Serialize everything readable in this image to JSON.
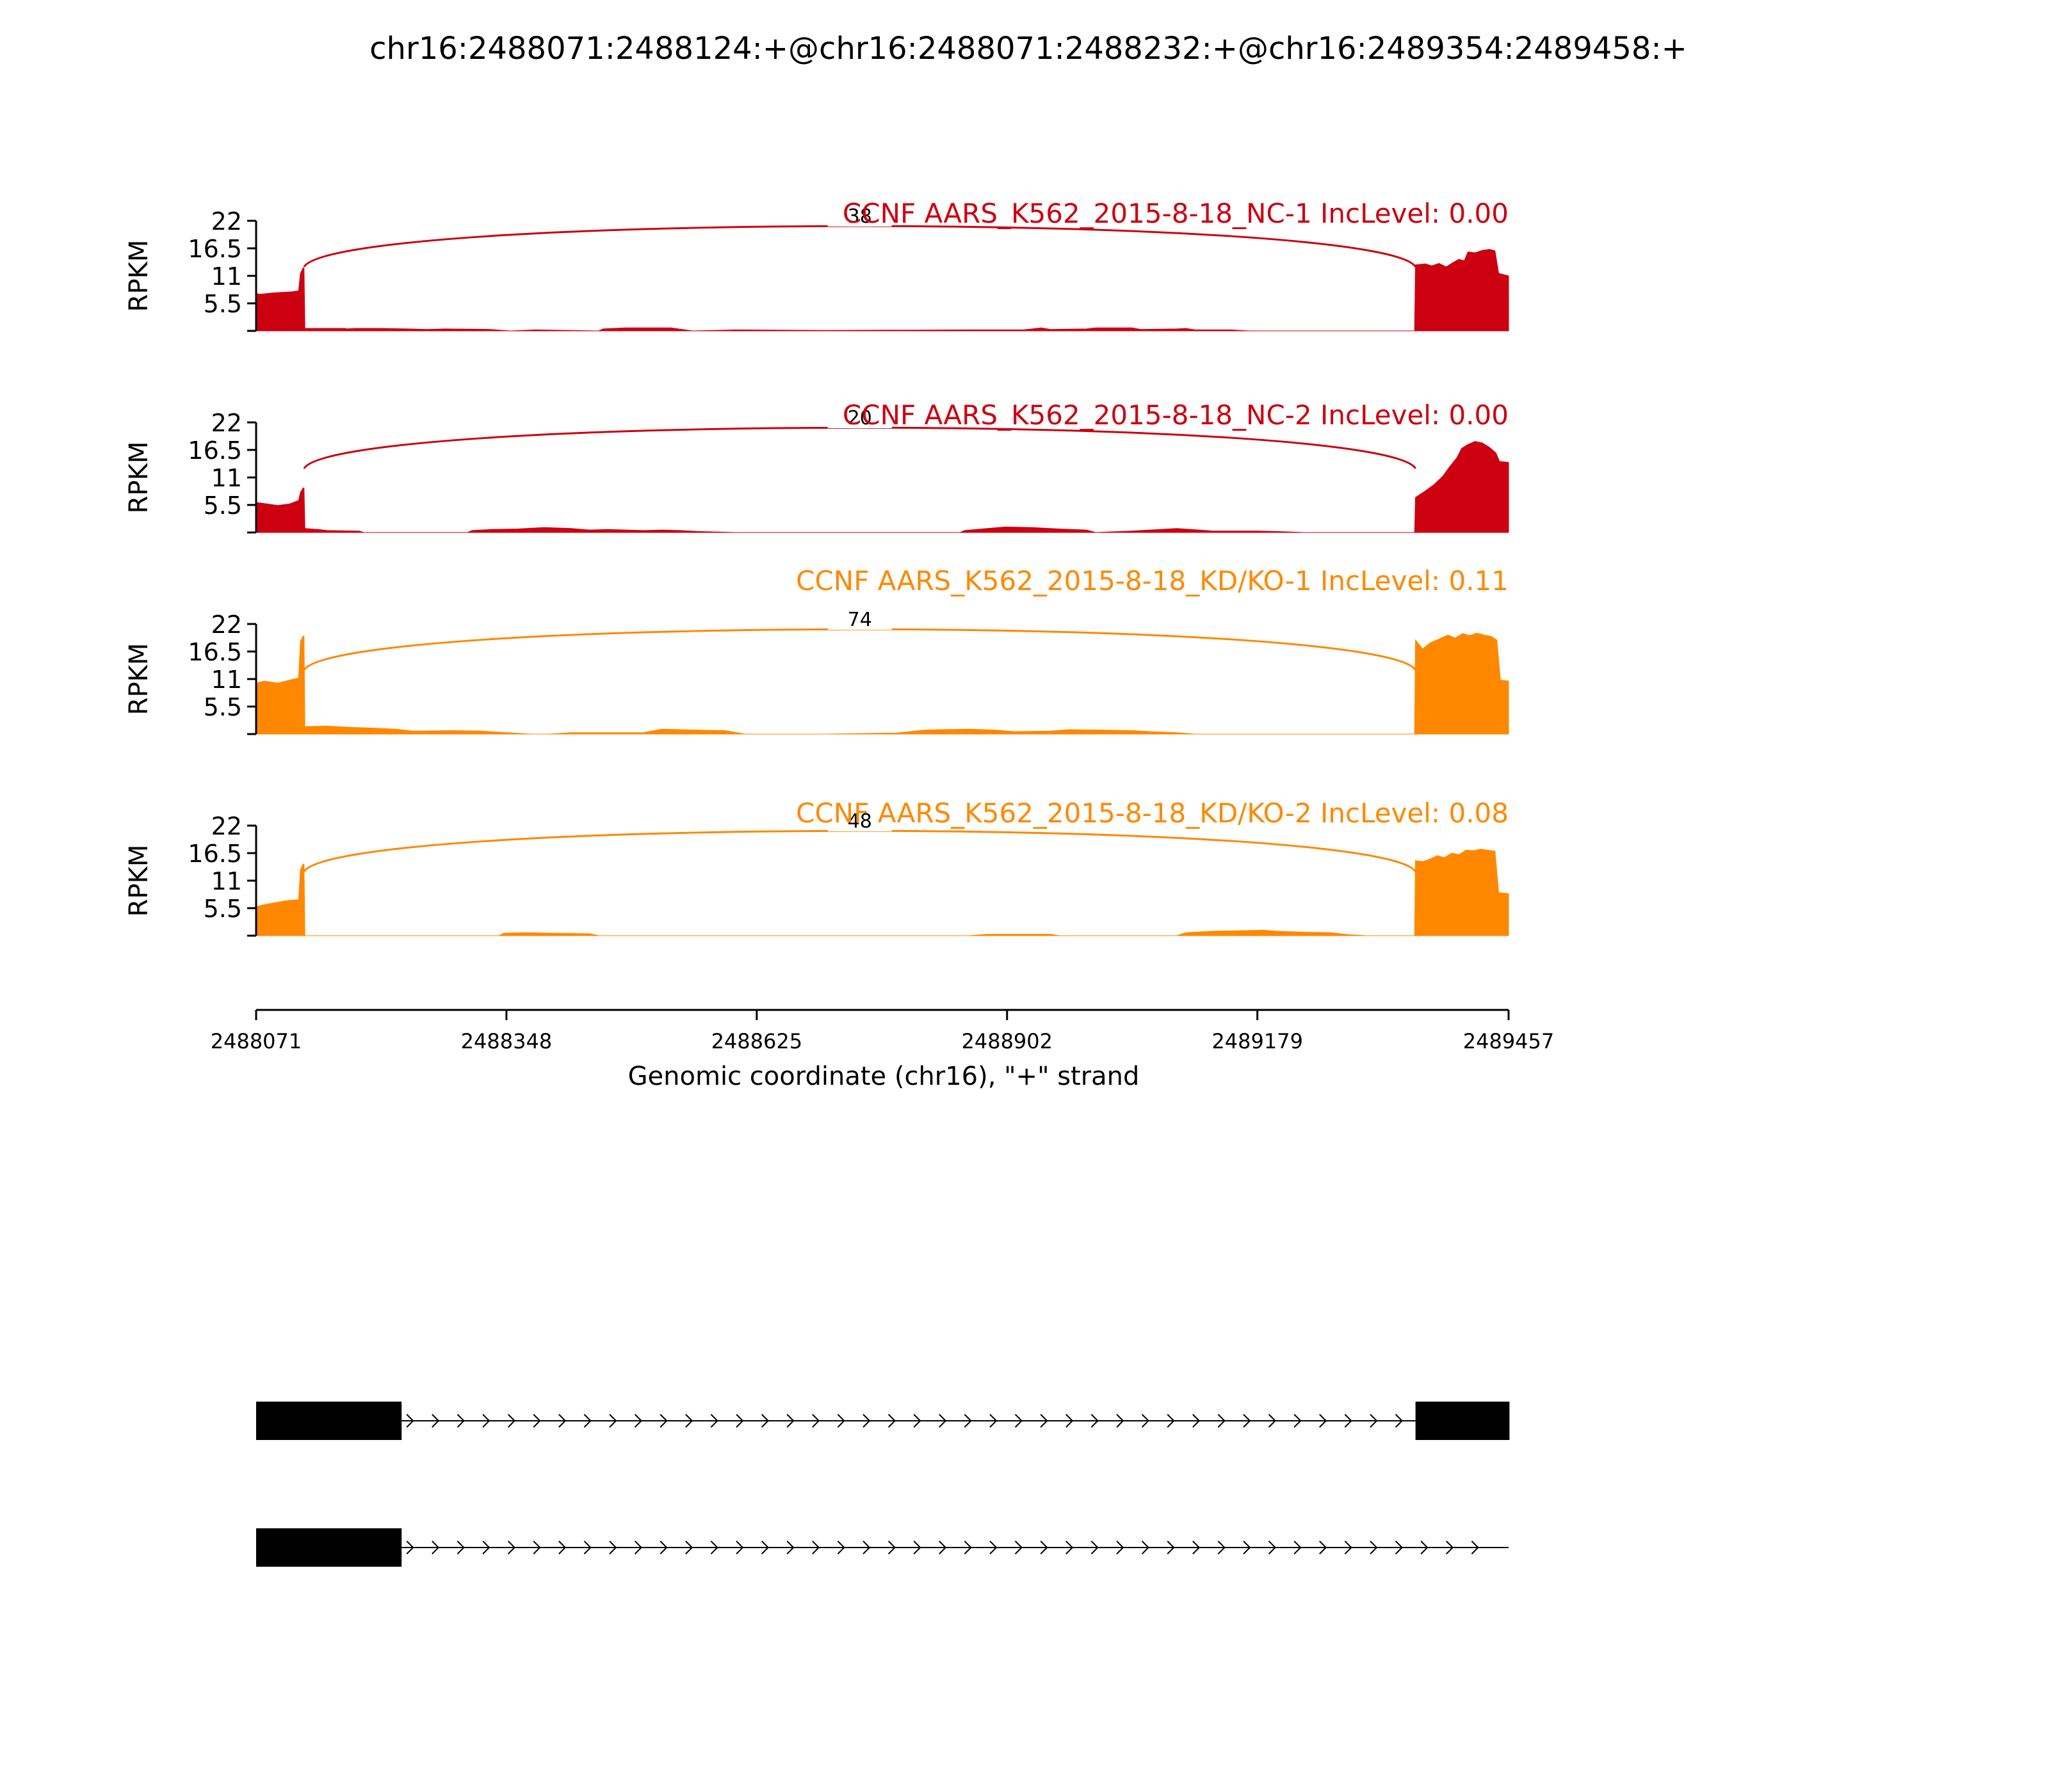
{
  "chart_data": {
    "type": "area",
    "title": "chr16:2488071:2488124:+@chr16:2488071:2488232:+@chr16:2489354:2489458:+",
    "xlabel": "Genomic coordinate (chr16), \"+\" strand",
    "x_ticks": [
      "2488071",
      "2488348",
      "2488625",
      "2488902",
      "2489179",
      "2489457"
    ],
    "xlim": [
      2488071,
      2489457
    ],
    "ylabel": "RPKM",
    "y_ticks": [
      "5.5",
      "11",
      "16.5",
      "22"
    ],
    "ylim": [
      0,
      22
    ],
    "grid": false,
    "legend": "none",
    "tracks": [
      {
        "name": "CCNF AARS_K562_2015-8-18_NC-1 IncLevel: 0.00",
        "color": "#cc0010",
        "junction": {
          "from": 2488124,
          "to": 2489354,
          "count": "38"
        },
        "coverage": [
          [
            2488071,
            7.5
          ],
          [
            2488075,
            7.3
          ],
          [
            2488090,
            7.6
          ],
          [
            2488110,
            7.8
          ],
          [
            2488118,
            8.0
          ],
          [
            2488120,
            11.5
          ],
          [
            2488123,
            12.6
          ],
          [
            2488124,
            12.6
          ],
          [
            2488125,
            0.5
          ],
          [
            2488170,
            0.5
          ],
          [
            2488171,
            0.4
          ],
          [
            2488180,
            0.5
          ],
          [
            2488210,
            0.5
          ],
          [
            2488240,
            0.4
          ],
          [
            2488260,
            0.3
          ],
          [
            2488280,
            0.4
          ],
          [
            2488330,
            0.3
          ],
          [
            2488352,
            0.0
          ],
          [
            2488380,
            0.2
          ],
          [
            2488450,
            0.0
          ],
          [
            2488455,
            0.4
          ],
          [
            2488480,
            0.6
          ],
          [
            2488530,
            0.6
          ],
          [
            2488554,
            0.0
          ],
          [
            2488600,
            0.2
          ],
          [
            2488700,
            0.1
          ],
          [
            2488860,
            0.2
          ],
          [
            2488920,
            0.2
          ],
          [
            2488930,
            0.4
          ],
          [
            2488940,
            0.6
          ],
          [
            2488950,
            0.3
          ],
          [
            2488990,
            0.4
          ],
          [
            2489000,
            0.6
          ],
          [
            2489040,
            0.6
          ],
          [
            2489050,
            0.3
          ],
          [
            2489090,
            0.4
          ],
          [
            2489100,
            0.5
          ],
          [
            2489110,
            0.2
          ],
          [
            2489150,
            0.2
          ],
          [
            2489170,
            0.0
          ],
          [
            2489353,
            0.0
          ],
          [
            2489354,
            13.2
          ],
          [
            2489365,
            13.4
          ],
          [
            2489372,
            13.0
          ],
          [
            2489380,
            13.5
          ],
          [
            2489388,
            12.8
          ],
          [
            2489395,
            13.6
          ],
          [
            2489402,
            14.3
          ],
          [
            2489408,
            14.0
          ],
          [
            2489412,
            15.8
          ],
          [
            2489420,
            15.6
          ],
          [
            2489428,
            16.1
          ],
          [
            2489436,
            16.3
          ],
          [
            2489442,
            16.0
          ],
          [
            2489446,
            11.5
          ],
          [
            2489457,
            11.0
          ]
        ]
      },
      {
        "name": "CCNF AARS_K562_2015-8-18_NC-2 IncLevel: 0.00",
        "color": "#cc0010",
        "junction": {
          "from": 2488124,
          "to": 2489354,
          "count": "20"
        },
        "coverage": [
          [
            2488071,
            6.0
          ],
          [
            2488080,
            5.8
          ],
          [
            2488095,
            5.4
          ],
          [
            2488108,
            5.7
          ],
          [
            2488118,
            6.4
          ],
          [
            2488120,
            8.0
          ],
          [
            2488123,
            8.9
          ],
          [
            2488124,
            8.9
          ],
          [
            2488125,
            0.8
          ],
          [
            2488140,
            0.6
          ],
          [
            2488150,
            0.4
          ],
          [
            2488185,
            0.3
          ],
          [
            2488190,
            0.0
          ],
          [
            2488305,
            0.0
          ],
          [
            2488310,
            0.4
          ],
          [
            2488330,
            0.6
          ],
          [
            2488360,
            0.7
          ],
          [
            2488390,
            1.0
          ],
          [
            2488420,
            0.8
          ],
          [
            2488440,
            0.5
          ],
          [
            2488460,
            0.6
          ],
          [
            2488480,
            0.5
          ],
          [
            2488500,
            0.4
          ],
          [
            2488520,
            0.5
          ],
          [
            2488540,
            0.4
          ],
          [
            2488560,
            0.2
          ],
          [
            2488600,
            0.0
          ],
          [
            2488850,
            0.0
          ],
          [
            2488855,
            0.4
          ],
          [
            2488880,
            0.8
          ],
          [
            2488900,
            1.1
          ],
          [
            2488930,
            1.0
          ],
          [
            2488960,
            0.7
          ],
          [
            2488990,
            0.5
          ],
          [
            2489000,
            0.0
          ],
          [
            2489040,
            0.3
          ],
          [
            2489060,
            0.5
          ],
          [
            2489090,
            0.8
          ],
          [
            2489115,
            0.5
          ],
          [
            2489130,
            0.3
          ],
          [
            2489180,
            0.3
          ],
          [
            2489200,
            0.2
          ],
          [
            2489230,
            0.0
          ],
          [
            2489353,
            0.0
          ],
          [
            2489354,
            7.0
          ],
          [
            2489364,
            8.2
          ],
          [
            2489374,
            9.5
          ],
          [
            2489384,
            11.2
          ],
          [
            2489392,
            13.2
          ],
          [
            2489400,
            15.0
          ],
          [
            2489405,
            16.8
          ],
          [
            2489412,
            17.6
          ],
          [
            2489420,
            18.2
          ],
          [
            2489428,
            17.9
          ],
          [
            2489436,
            17.0
          ],
          [
            2489443,
            15.9
          ],
          [
            2489447,
            14.2
          ],
          [
            2489457,
            14.0
          ]
        ]
      },
      {
        "name": "CCNF AARS_K562_2015-8-18_KD/KO-1 IncLevel: 0.11",
        "color": "#ff8800",
        "junction": {
          "from": 2488124,
          "to": 2489354,
          "count": "74"
        },
        "coverage": [
          [
            2488071,
            10.2
          ],
          [
            2488080,
            10.6
          ],
          [
            2488095,
            10.2
          ],
          [
            2488108,
            10.8
          ],
          [
            2488118,
            11.2
          ],
          [
            2488120,
            18.5
          ],
          [
            2488123,
            19.6
          ],
          [
            2488124,
            19.6
          ],
          [
            2488125,
            1.5
          ],
          [
            2488150,
            1.6
          ],
          [
            2488170,
            1.4
          ],
          [
            2488200,
            1.2
          ],
          [
            2488225,
            1.0
          ],
          [
            2488245,
            0.6
          ],
          [
            2488290,
            0.7
          ],
          [
            2488320,
            0.6
          ],
          [
            2488375,
            0.0
          ],
          [
            2488395,
            0.0
          ],
          [
            2488420,
            0.3
          ],
          [
            2488500,
            0.3
          ],
          [
            2488520,
            1.0
          ],
          [
            2488560,
            0.8
          ],
          [
            2488590,
            0.7
          ],
          [
            2488612,
            0.0
          ],
          [
            2488700,
            0.0
          ],
          [
            2488780,
            0.2
          ],
          [
            2488810,
            0.8
          ],
          [
            2488830,
            0.9
          ],
          [
            2488860,
            1.0
          ],
          [
            2488890,
            0.8
          ],
          [
            2488910,
            0.5
          ],
          [
            2488950,
            0.6
          ],
          [
            2488970,
            0.9
          ],
          [
            2489010,
            0.8
          ],
          [
            2489040,
            0.7
          ],
          [
            2489060,
            0.5
          ],
          [
            2489090,
            0.3
          ],
          [
            2489110,
            0.0
          ],
          [
            2489353,
            0.0
          ],
          [
            2489354,
            18.8
          ],
          [
            2489362,
            17.0
          ],
          [
            2489370,
            18.2
          ],
          [
            2489380,
            19.0
          ],
          [
            2489390,
            19.8
          ],
          [
            2489398,
            19.2
          ],
          [
            2489406,
            20.1
          ],
          [
            2489414,
            19.7
          ],
          [
            2489422,
            20.2
          ],
          [
            2489430,
            19.8
          ],
          [
            2489438,
            19.5
          ],
          [
            2489444,
            18.8
          ],
          [
            2489448,
            10.8
          ],
          [
            2489457,
            10.6
          ]
        ]
      },
      {
        "name": "CCNF AARS_K562_2015-8-18_KD/KO-2 IncLevel: 0.08",
        "color": "#ff8800",
        "junction": {
          "from": 2488124,
          "to": 2489354,
          "count": "48"
        },
        "coverage": [
          [
            2488071,
            5.8
          ],
          [
            2488080,
            6.2
          ],
          [
            2488092,
            6.6
          ],
          [
            2488105,
            7.0
          ],
          [
            2488118,
            7.2
          ],
          [
            2488120,
            13.2
          ],
          [
            2488123,
            14.3
          ],
          [
            2488124,
            14.3
          ],
          [
            2488125,
            0.0
          ],
          [
            2488340,
            0.0
          ],
          [
            2488345,
            0.5
          ],
          [
            2488370,
            0.6
          ],
          [
            2488400,
            0.5
          ],
          [
            2488440,
            0.4
          ],
          [
            2488450,
            0.0
          ],
          [
            2488860,
            0.0
          ],
          [
            2488880,
            0.3
          ],
          [
            2488950,
            0.3
          ],
          [
            2488960,
            0.0
          ],
          [
            2489090,
            0.0
          ],
          [
            2489100,
            0.6
          ],
          [
            2489130,
            0.9
          ],
          [
            2489160,
            1.0
          ],
          [
            2489185,
            1.1
          ],
          [
            2489200,
            0.9
          ],
          [
            2489230,
            0.7
          ],
          [
            2489260,
            0.6
          ],
          [
            2489280,
            0.2
          ],
          [
            2489300,
            0.0
          ],
          [
            2489353,
            0.0
          ],
          [
            2489354,
            15.0
          ],
          [
            2489362,
            14.8
          ],
          [
            2489370,
            15.3
          ],
          [
            2489378,
            16.0
          ],
          [
            2489386,
            15.6
          ],
          [
            2489394,
            16.5
          ],
          [
            2489402,
            16.2
          ],
          [
            2489410,
            17.1
          ],
          [
            2489418,
            17.0
          ],
          [
            2489426,
            17.3
          ],
          [
            2489434,
            17.1
          ],
          [
            2489442,
            16.9
          ],
          [
            2489446,
            8.6
          ],
          [
            2489457,
            8.4
          ]
        ]
      }
    ],
    "transcripts": [
      {
        "exons": [
          [
            2488071,
            2488124
          ],
          [
            2488071,
            2488232
          ],
          [
            2489354,
            2489458
          ]
        ],
        "span": [
          2488232,
          2489354
        ]
      },
      {
        "exons": [
          [
            2488071,
            2488124
          ],
          [
            2488071,
            2488232
          ]
        ],
        "span": [
          2488232,
          2489457
        ]
      }
    ]
  }
}
